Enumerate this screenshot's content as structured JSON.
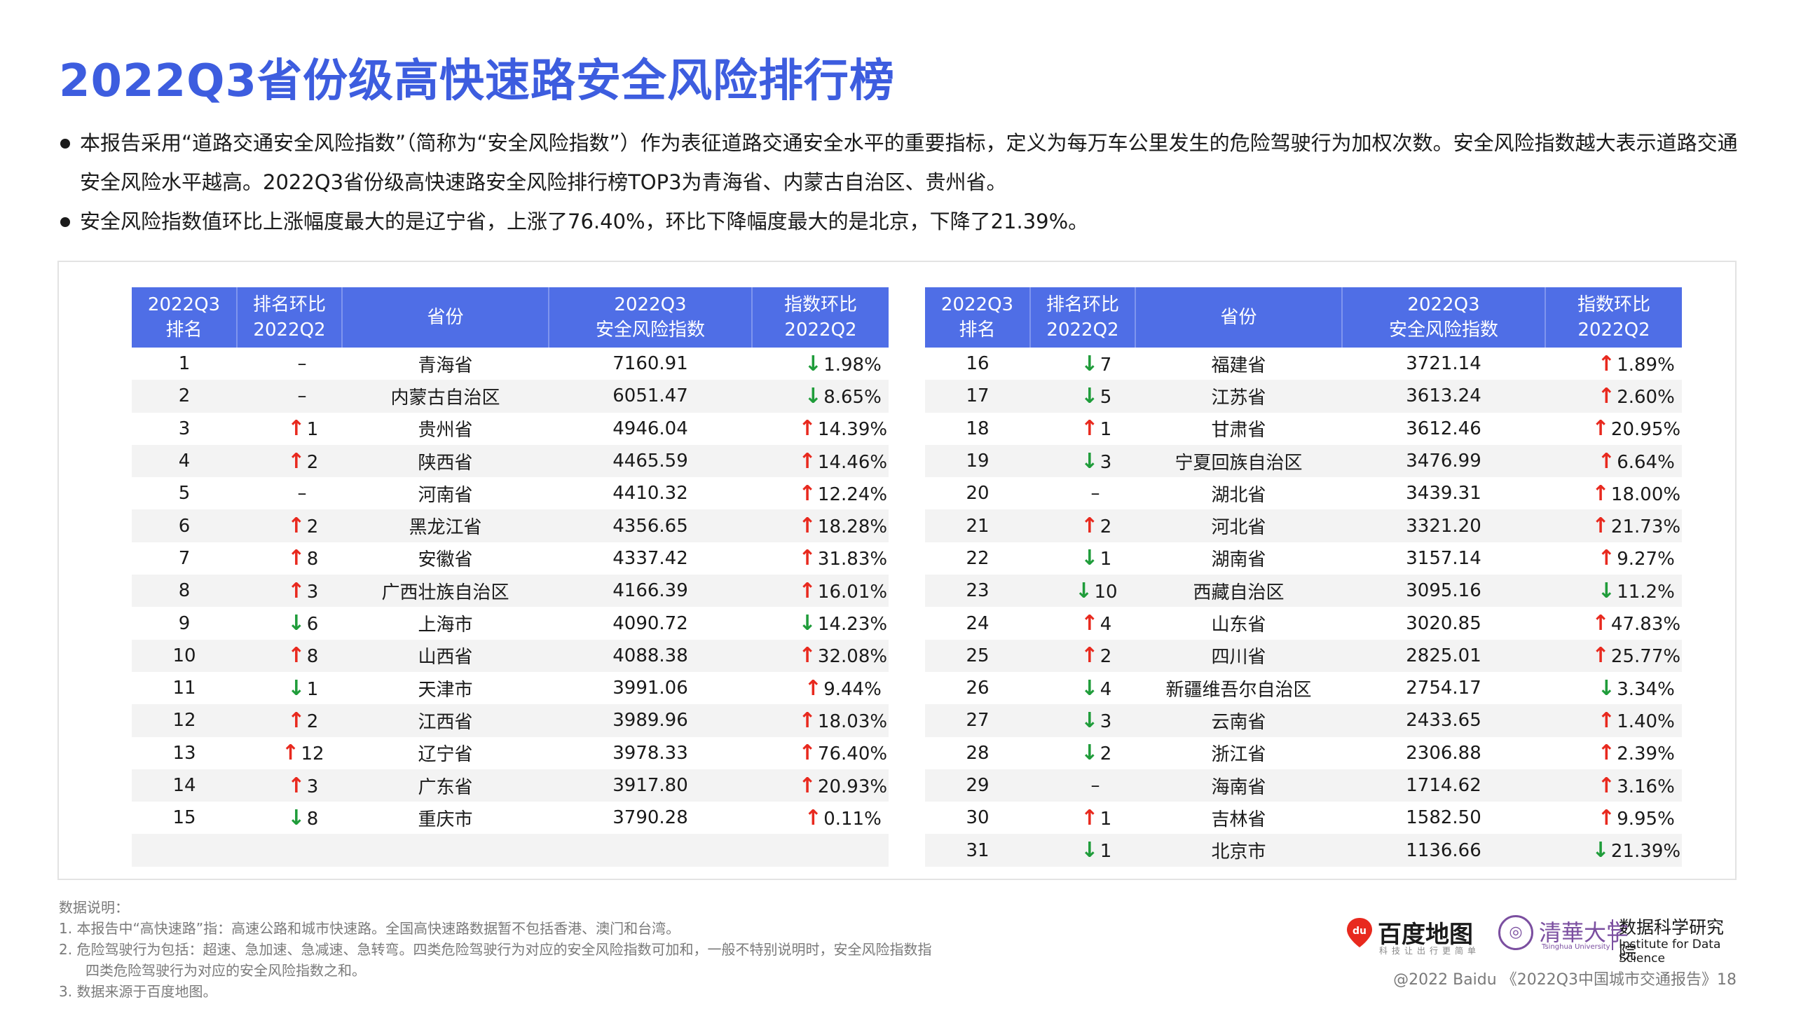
{
  "title": "2022Q3省份级高快速路安全风险排行榜",
  "bullets": [
    "本报告采用“道路交通安全风险指数”（简称为“安全风险指数”）作为表征道路交通安全水平的重要指标，定义为每万车公里发生的危险驾驶行为加权次数。安全风险指数越大表示道路交通安全风险水平越高。2022Q3省份级高快速路安全风险排行榜TOP3为青海省、内蒙古自治区、贵州省。",
    "安全风险指数值环比上涨幅度最大的是辽宁省，上涨了76.40%，环比下降幅度最大的是北京，下降了21.39%。"
  ],
  "table_headers": [
    [
      "2022Q3",
      "排名"
    ],
    [
      "排名环比",
      "2022Q2"
    ],
    [
      "省份"
    ],
    [
      "2022Q3",
      "安全风险指数"
    ],
    [
      "指数环比",
      "2022Q2"
    ]
  ],
  "arrows": {
    "up": "↑",
    "down": "↓",
    "none": "–"
  },
  "rows_left": [
    {
      "rank": "1",
      "dir": "none",
      "chg": "",
      "province": "青海省",
      "index": "7160.91",
      "idir": "down",
      "pct": "1.98%"
    },
    {
      "rank": "2",
      "dir": "none",
      "chg": "",
      "province": "内蒙古自治区",
      "index": "6051.47",
      "idir": "down",
      "pct": "8.65%"
    },
    {
      "rank": "3",
      "dir": "up",
      "chg": "1",
      "province": "贵州省",
      "index": "4946.04",
      "idir": "up",
      "pct": "14.39%"
    },
    {
      "rank": "4",
      "dir": "up",
      "chg": "2",
      "province": "陕西省",
      "index": "4465.59",
      "idir": "up",
      "pct": "14.46%"
    },
    {
      "rank": "5",
      "dir": "none",
      "chg": "",
      "province": "河南省",
      "index": "4410.32",
      "idir": "up",
      "pct": "12.24%"
    },
    {
      "rank": "6",
      "dir": "up",
      "chg": "2",
      "province": "黑龙江省",
      "index": "4356.65",
      "idir": "up",
      "pct": "18.28%"
    },
    {
      "rank": "7",
      "dir": "up",
      "chg": "8",
      "province": "安徽省",
      "index": "4337.42",
      "idir": "up",
      "pct": "31.83%"
    },
    {
      "rank": "8",
      "dir": "up",
      "chg": "3",
      "province": "广西壮族自治区",
      "index": "4166.39",
      "idir": "up",
      "pct": "16.01%"
    },
    {
      "rank": "9",
      "dir": "down",
      "chg": "6",
      "province": "上海市",
      "index": "4090.72",
      "idir": "down",
      "pct": "14.23%"
    },
    {
      "rank": "10",
      "dir": "up",
      "chg": "8",
      "province": "山西省",
      "index": "4088.38",
      "idir": "up",
      "pct": "32.08%"
    },
    {
      "rank": "11",
      "dir": "down",
      "chg": "1",
      "province": "天津市",
      "index": "3991.06",
      "idir": "up",
      "pct": "9.44%"
    },
    {
      "rank": "12",
      "dir": "up",
      "chg": "2",
      "province": "江西省",
      "index": "3989.96",
      "idir": "up",
      "pct": "18.03%"
    },
    {
      "rank": "13",
      "dir": "up",
      "chg": "12",
      "province": "辽宁省",
      "index": "3978.33",
      "idir": "up",
      "pct": "76.40%"
    },
    {
      "rank": "14",
      "dir": "up",
      "chg": "3",
      "province": "广东省",
      "index": "3917.80",
      "idir": "up",
      "pct": "20.93%"
    },
    {
      "rank": "15",
      "dir": "down",
      "chg": "8",
      "province": "重庆市",
      "index": "3790.28",
      "idir": "up",
      "pct": "0.11%"
    },
    {
      "rank": "",
      "dir": "blank",
      "chg": "",
      "province": "",
      "index": "",
      "idir": "blank",
      "pct": ""
    }
  ],
  "rows_right": [
    {
      "rank": "16",
      "dir": "down",
      "chg": "7",
      "province": "福建省",
      "index": "3721.14",
      "idir": "up",
      "pct": "1.89%"
    },
    {
      "rank": "17",
      "dir": "down",
      "chg": "5",
      "province": "江苏省",
      "index": "3613.24",
      "idir": "up",
      "pct": "2.60%"
    },
    {
      "rank": "18",
      "dir": "up",
      "chg": "1",
      "province": "甘肃省",
      "index": "3612.46",
      "idir": "up",
      "pct": "20.95%"
    },
    {
      "rank": "19",
      "dir": "down",
      "chg": "3",
      "province": "宁夏回族自治区",
      "index": "3476.99",
      "idir": "up",
      "pct": "6.64%"
    },
    {
      "rank": "20",
      "dir": "none",
      "chg": "",
      "province": "湖北省",
      "index": "3439.31",
      "idir": "up",
      "pct": "18.00%"
    },
    {
      "rank": "21",
      "dir": "up",
      "chg": "2",
      "province": "河北省",
      "index": "3321.20",
      "idir": "up",
      "pct": "21.73%"
    },
    {
      "rank": "22",
      "dir": "down",
      "chg": "1",
      "province": "湖南省",
      "index": "3157.14",
      "idir": "up",
      "pct": "9.27%"
    },
    {
      "rank": "23",
      "dir": "down",
      "chg": "10",
      "province": "西藏自治区",
      "index": "3095.16",
      "idir": "down",
      "pct": "11.2%"
    },
    {
      "rank": "24",
      "dir": "up",
      "chg": "4",
      "province": "山东省",
      "index": "3020.85",
      "idir": "up",
      "pct": "47.83%"
    },
    {
      "rank": "25",
      "dir": "up",
      "chg": "2",
      "province": "四川省",
      "index": "2825.01",
      "idir": "up",
      "pct": "25.77%"
    },
    {
      "rank": "26",
      "dir": "down",
      "chg": "4",
      "province": "新疆维吾尔自治区",
      "index": "2754.17",
      "idir": "down",
      "pct": "3.34%"
    },
    {
      "rank": "27",
      "dir": "down",
      "chg": "3",
      "province": "云南省",
      "index": "2433.65",
      "idir": "up",
      "pct": "1.40%"
    },
    {
      "rank": "28",
      "dir": "down",
      "chg": "2",
      "province": "浙江省",
      "index": "2306.88",
      "idir": "up",
      "pct": "2.39%"
    },
    {
      "rank": "29",
      "dir": "none",
      "chg": "",
      "province": "海南省",
      "index": "1714.62",
      "idir": "up",
      "pct": "3.16%"
    },
    {
      "rank": "30",
      "dir": "up",
      "chg": "1",
      "province": "吉林省",
      "index": "1582.50",
      "idir": "up",
      "pct": "9.95%"
    },
    {
      "rank": "31",
      "dir": "down",
      "chg": "1",
      "province": "北京市",
      "index": "1136.66",
      "idir": "down",
      "pct": "21.39%"
    }
  ],
  "notes": {
    "heading": "数据说明：",
    "items": [
      "1.   本报告中“高快速路”指：高速公路和城市快速路。全国高快速路数据暂不包括香港、澳门和台湾。",
      "2.   危险驾驶行为包括：超速、急加速、急减速、急转弯。四类危险驾驶行为对应的安全风险指数可加和，一般不特别说明时，安全风险指数指",
      "四类危险驾驶行为对应的安全风险指数之和。",
      "3.   数据来源于百度地图。"
    ]
  },
  "logos": {
    "baidu_name": "百度地图",
    "baidu_sub": "科技让出行更简单",
    "tsinghua_name": "清華大学",
    "tsinghua_en": "Tsinghua University",
    "institute_cn": "数据科学研究院",
    "institute_en": "Institute for Data Science"
  },
  "footer": "@2022 Baidu 《2022Q3中国城市交通报告》18",
  "colors": {
    "title": "#3d5ddf",
    "header": "#4f6ee6",
    "up": "#e8291e",
    "down": "#1f9c3a"
  }
}
